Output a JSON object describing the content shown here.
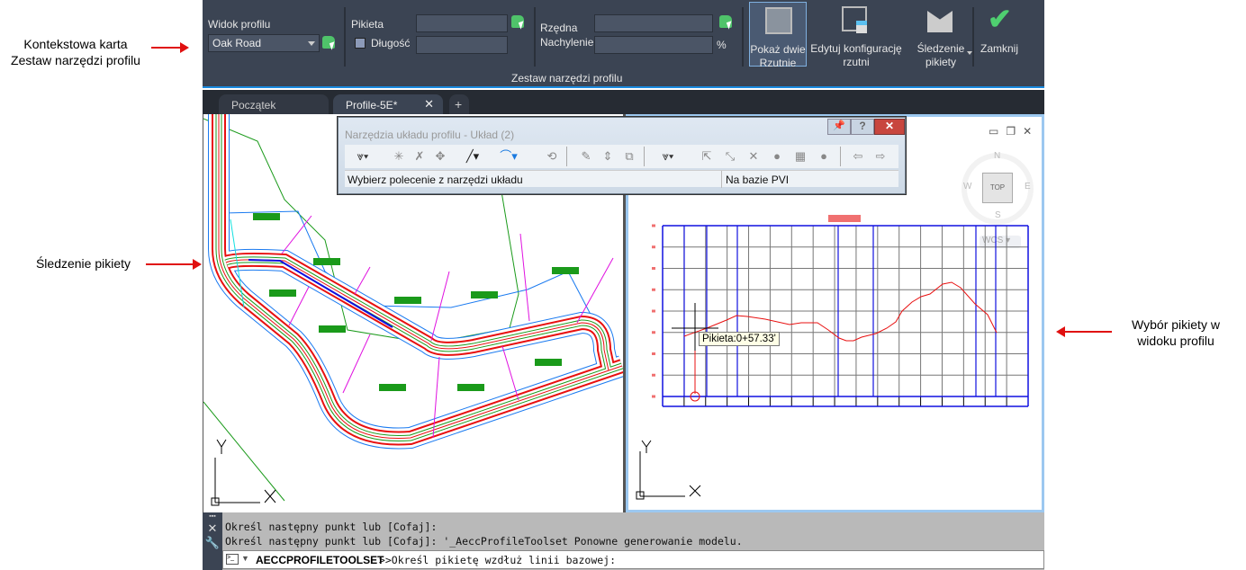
{
  "annotations": {
    "ribbon_line1": "Kontekstowa karta",
    "ribbon_line2": "Zestaw narzędzi profilu",
    "tracking": "Śledzenie pikiety",
    "select_line1": "Wybór pikiety w",
    "select_line2": "widoku profilu"
  },
  "ribbon": {
    "profile_view_label": "Widok profilu",
    "profile_view_value": "Oak Road",
    "station_label": "Pikieta",
    "station_value": "",
    "length_label": "Długość",
    "length_value": "",
    "length_checked": false,
    "elevation_label": "Rzędna",
    "elevation_value": "",
    "grade_label": "Nachylenie",
    "grade_value": "",
    "grade_unit": "%",
    "panel_title": "Zestaw narzędzi profilu",
    "btn_two_viewports_1": "Pokaż dwie",
    "btn_two_viewports_2": "Rzutnie",
    "btn_edit_config_1": "Edytuj konfigurację",
    "btn_edit_config_2": "rzutni",
    "btn_tracking_1": "Śledzenie",
    "btn_tracking_2": "pikiety",
    "btn_close": "Zamknij",
    "accent": "#1a8be0"
  },
  "tabs": [
    {
      "label": "Początek"
    },
    {
      "label": "Profile-5E*"
    }
  ],
  "dialog": {
    "title": "Narzędzia układu profilu - Układ (2)",
    "status_left": "Wybierz polecenie z narzędzi układu",
    "status_right": "Na bazie PVI"
  },
  "profile_view": {
    "tooltip": "Pikieta:0+57.33'",
    "viewcube": {
      "top": "TOP",
      "n": "N",
      "s": "S",
      "e": "E",
      "w": "W",
      "ucs": "WCS"
    }
  },
  "command": {
    "history": [
      "Określ następny punkt lub [Cofaj]:",
      "Określ następny punkt lub [Cofaj]: '_AeccProfileToolset Ponowne generowanie modelu."
    ],
    "command_name": "AECCPROFILETOOLSET",
    "prompt": " >>Określ pikietę wzdłuż linii bazowej:"
  }
}
